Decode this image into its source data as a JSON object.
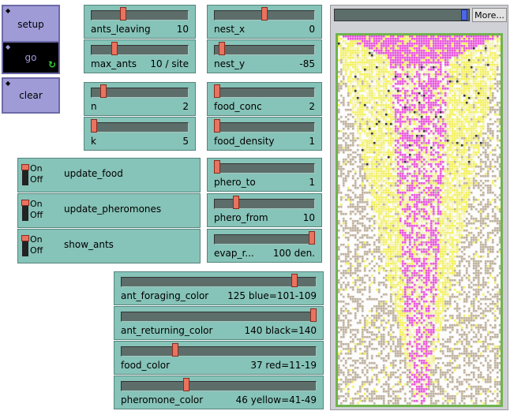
{
  "buttons": {
    "setup": "setup",
    "go": "go",
    "clear": "clear"
  },
  "sliders": [
    {
      "id": "ants-leaving",
      "label": "ants_leaving",
      "value": "10",
      "pos": 0.32
    },
    {
      "id": "max-ants",
      "label": "max_ants",
      "value": "10 / site",
      "pos": 0.22
    },
    {
      "id": "nest-x",
      "label": "nest_x",
      "value": "0",
      "pos": 0.5
    },
    {
      "id": "nest-y",
      "label": "nest_y",
      "value": "-85",
      "pos": 0.05
    },
    {
      "id": "n",
      "label": "n",
      "value": "2",
      "pos": 0.1
    },
    {
      "id": "k",
      "label": "k",
      "value": "5",
      "pos": 0.0
    },
    {
      "id": "food-conc",
      "label": "food_conc",
      "value": "2",
      "pos": 0.0
    },
    {
      "id": "food-density",
      "label": "food_density",
      "value": "1",
      "pos": 0.0
    },
    {
      "id": "phero-to",
      "label": "phero_to",
      "value": "1",
      "pos": 0.0
    },
    {
      "id": "phero-from",
      "label": "phero_from",
      "value": "10",
      "pos": 0.2
    },
    {
      "id": "evap-r",
      "label": "evap_r...",
      "value": "100 den.",
      "pos": 1.0
    },
    {
      "id": "ant-foraging-color",
      "label": "ant_foraging_color",
      "value": "125 blue=101-109",
      "pos": 0.9
    },
    {
      "id": "ant-returning-color",
      "label": "ant_returning_color",
      "value": "140 black=140",
      "pos": 1.0
    },
    {
      "id": "food-color",
      "label": "food_color",
      "value": "37 red=11-19",
      "pos": 0.27
    },
    {
      "id": "pheromone-color",
      "label": "pheromone_color",
      "value": "46 yellow=41-49",
      "pos": 0.33
    }
  ],
  "switches": [
    {
      "id": "update-food",
      "label": "update_food",
      "on": "On",
      "off": "Off"
    },
    {
      "id": "update-pheromones",
      "label": "update_pheromones",
      "on": "On",
      "off": "Off"
    },
    {
      "id": "show-ants",
      "label": "show_ants",
      "on": "On",
      "off": "Off"
    }
  ],
  "view": {
    "more_label": "More...",
    "speed": 0.95
  }
}
